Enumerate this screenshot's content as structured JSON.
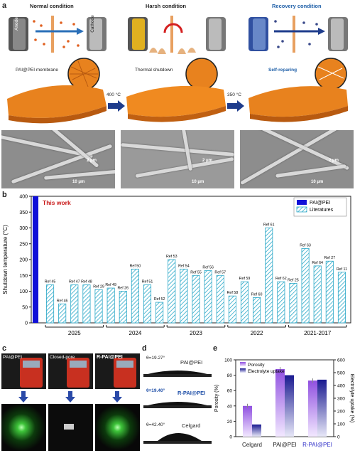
{
  "panel_a": {
    "label": "a",
    "conditions": [
      "Normal condition",
      "Harsh condition",
      "Recovery condition"
    ],
    "electrode_anode": "Anode",
    "electrode_cathode": "Cathode",
    "captions": [
      "PAI@PEI membrane",
      "Thermal shutdown",
      "Self-reparing"
    ],
    "arrows": [
      "400 °C",
      "350 °C"
    ],
    "scale_small": "2 μm",
    "scale_large": "10 μm",
    "colors": {
      "membrane": "#e8821e",
      "recovery_title": "#2060a8",
      "arrow": "#1e3c8c"
    }
  },
  "panel_b": {
    "label": "b"
  },
  "chart_data": [
    {
      "type": "bar",
      "title": "",
      "annotation": "This work",
      "ylabel": "Shutdown temperature (°C)",
      "ylim": [
        0,
        400
      ],
      "yticks": [
        0,
        50,
        100,
        150,
        200,
        250,
        300,
        350,
        400
      ],
      "legend": [
        "PAI@PEI",
        "Literatures"
      ],
      "legend_position": "top-right",
      "colors": {
        "this_work": "#1010d8",
        "literature": "#2aa8c8"
      },
      "this_work_value": 400,
      "groups": [
        {
          "year": "2025",
          "refs": [
            "Ref 45",
            "Ref 46",
            "Ref 47",
            "Ref 48",
            "Ref 29"
          ],
          "values": [
            120,
            60,
            120,
            120,
            105
          ]
        },
        {
          "year": "2024",
          "refs": [
            "Ref 49",
            "Ref 26",
            "Ref 50",
            "Ref 51",
            "Ref 52"
          ],
          "values": [
            110,
            100,
            170,
            120,
            65
          ]
        },
        {
          "year": "2023",
          "refs": [
            "Ref 53",
            "Ref 54",
            "Ref 55",
            "Ref 56",
            "Ref 57"
          ],
          "values": [
            200,
            170,
            150,
            165,
            150
          ]
        },
        {
          "year": "2022",
          "refs": [
            "Ref 58",
            "Ref 59",
            "Ref 60",
            "Ref 61",
            "Ref 62"
          ],
          "values": [
            85,
            130,
            80,
            300,
            130
          ]
        },
        {
          "year": "2021-2017",
          "refs": [
            "Ref 25",
            "Ref 63",
            "Ref 64",
            "Ref 27",
            "Ref 11"
          ],
          "values": [
            125,
            235,
            180,
            195,
            160
          ]
        }
      ]
    },
    {
      "type": "bar",
      "title": "",
      "categories": [
        "Celgard",
        "PAI@PEI",
        "R-PAI@PEI"
      ],
      "series": [
        {
          "name": "Porosity",
          "values": [
            40,
            88,
            73
          ],
          "axis": "left"
        },
        {
          "name": "Electrolyte uptake",
          "values": [
            95,
            480,
            445
          ],
          "axis": "right"
        }
      ],
      "ylabel": "Porosity (%)",
      "y2label": "Electrolyte uptake (%)",
      "ylim": [
        0,
        100
      ],
      "y2lim": [
        0,
        600
      ],
      "yticks": [
        0,
        20,
        40,
        60,
        80,
        100
      ],
      "y2ticks": [
        0,
        100,
        200,
        300,
        400,
        500,
        600
      ],
      "legend_position": "top-left",
      "colors": {
        "porosity": "#a868e8",
        "uptake": "#3030a0",
        "category_red": "#d42020",
        "category_blue": "#3030c8"
      }
    }
  ],
  "panel_c": {
    "label": "c",
    "tags": [
      "PAI@PEI",
      "Closed-pore",
      "R-PAI@PEI"
    ]
  },
  "panel_d": {
    "label": "d",
    "angles": [
      "θ=19.27°",
      "θ=19.40°",
      "θ=42.40°"
    ],
    "names": [
      "PAI@PEI",
      "R-PAI@PEI",
      "Celgard"
    ]
  },
  "panel_e": {
    "label": "e"
  }
}
